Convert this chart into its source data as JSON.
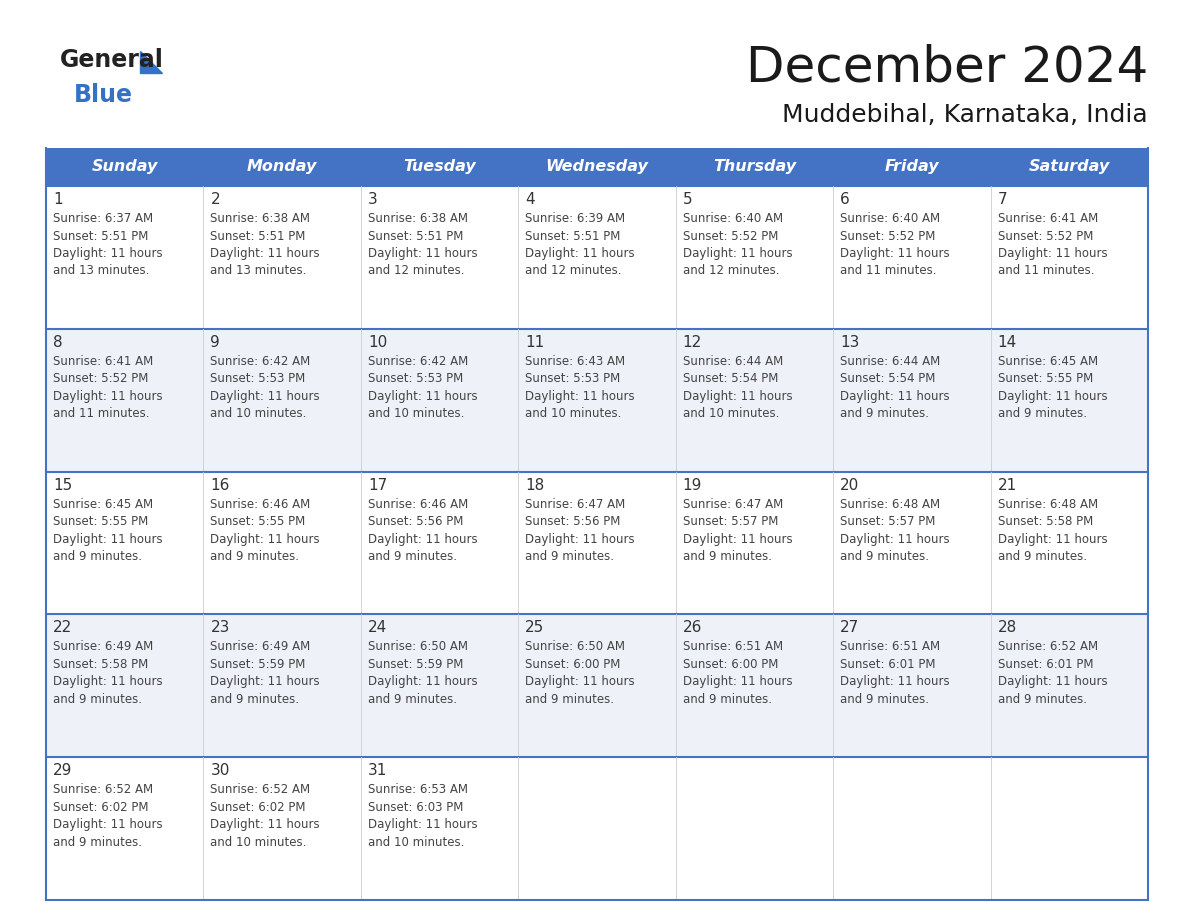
{
  "title": "December 2024",
  "subtitle": "Muddebihal, Karnataka, India",
  "header_bg_color": "#4472C4",
  "header_text_color": "#FFFFFF",
  "cell_border_color": "#4472C4",
  "row_border_color": "#4472C4",
  "day_number_color": "#333333",
  "cell_text_color": "#444444",
  "background_color": "#FFFFFF",
  "cell_bg_even": "#FFFFFF",
  "cell_bg_odd": "#EEF2F8",
  "days_of_week": [
    "Sunday",
    "Monday",
    "Tuesday",
    "Wednesday",
    "Thursday",
    "Friday",
    "Saturday"
  ],
  "weeks": [
    [
      {
        "day": 1,
        "sunrise": "6:37 AM",
        "sunset": "5:51 PM",
        "daylight_line1": "11 hours",
        "daylight_line2": "and 13 minutes."
      },
      {
        "day": 2,
        "sunrise": "6:38 AM",
        "sunset": "5:51 PM",
        "daylight_line1": "11 hours",
        "daylight_line2": "and 13 minutes."
      },
      {
        "day": 3,
        "sunrise": "6:38 AM",
        "sunset": "5:51 PM",
        "daylight_line1": "11 hours",
        "daylight_line2": "and 12 minutes."
      },
      {
        "day": 4,
        "sunrise": "6:39 AM",
        "sunset": "5:51 PM",
        "daylight_line1": "11 hours",
        "daylight_line2": "and 12 minutes."
      },
      {
        "day": 5,
        "sunrise": "6:40 AM",
        "sunset": "5:52 PM",
        "daylight_line1": "11 hours",
        "daylight_line2": "and 12 minutes."
      },
      {
        "day": 6,
        "sunrise": "6:40 AM",
        "sunset": "5:52 PM",
        "daylight_line1": "11 hours",
        "daylight_line2": "and 11 minutes."
      },
      {
        "day": 7,
        "sunrise": "6:41 AM",
        "sunset": "5:52 PM",
        "daylight_line1": "11 hours",
        "daylight_line2": "and 11 minutes."
      }
    ],
    [
      {
        "day": 8,
        "sunrise": "6:41 AM",
        "sunset": "5:52 PM",
        "daylight_line1": "11 hours",
        "daylight_line2": "and 11 minutes."
      },
      {
        "day": 9,
        "sunrise": "6:42 AM",
        "sunset": "5:53 PM",
        "daylight_line1": "11 hours",
        "daylight_line2": "and 10 minutes."
      },
      {
        "day": 10,
        "sunrise": "6:42 AM",
        "sunset": "5:53 PM",
        "daylight_line1": "11 hours",
        "daylight_line2": "and 10 minutes."
      },
      {
        "day": 11,
        "sunrise": "6:43 AM",
        "sunset": "5:53 PM",
        "daylight_line1": "11 hours",
        "daylight_line2": "and 10 minutes."
      },
      {
        "day": 12,
        "sunrise": "6:44 AM",
        "sunset": "5:54 PM",
        "daylight_line1": "11 hours",
        "daylight_line2": "and 10 minutes."
      },
      {
        "day": 13,
        "sunrise": "6:44 AM",
        "sunset": "5:54 PM",
        "daylight_line1": "11 hours",
        "daylight_line2": "and 9 minutes."
      },
      {
        "day": 14,
        "sunrise": "6:45 AM",
        "sunset": "5:55 PM",
        "daylight_line1": "11 hours",
        "daylight_line2": "and 9 minutes."
      }
    ],
    [
      {
        "day": 15,
        "sunrise": "6:45 AM",
        "sunset": "5:55 PM",
        "daylight_line1": "11 hours",
        "daylight_line2": "and 9 minutes."
      },
      {
        "day": 16,
        "sunrise": "6:46 AM",
        "sunset": "5:55 PM",
        "daylight_line1": "11 hours",
        "daylight_line2": "and 9 minutes."
      },
      {
        "day": 17,
        "sunrise": "6:46 AM",
        "sunset": "5:56 PM",
        "daylight_line1": "11 hours",
        "daylight_line2": "and 9 minutes."
      },
      {
        "day": 18,
        "sunrise": "6:47 AM",
        "sunset": "5:56 PM",
        "daylight_line1": "11 hours",
        "daylight_line2": "and 9 minutes."
      },
      {
        "day": 19,
        "sunrise": "6:47 AM",
        "sunset": "5:57 PM",
        "daylight_line1": "11 hours",
        "daylight_line2": "and 9 minutes."
      },
      {
        "day": 20,
        "sunrise": "6:48 AM",
        "sunset": "5:57 PM",
        "daylight_line1": "11 hours",
        "daylight_line2": "and 9 minutes."
      },
      {
        "day": 21,
        "sunrise": "6:48 AM",
        "sunset": "5:58 PM",
        "daylight_line1": "11 hours",
        "daylight_line2": "and 9 minutes."
      }
    ],
    [
      {
        "day": 22,
        "sunrise": "6:49 AM",
        "sunset": "5:58 PM",
        "daylight_line1": "11 hours",
        "daylight_line2": "and 9 minutes."
      },
      {
        "day": 23,
        "sunrise": "6:49 AM",
        "sunset": "5:59 PM",
        "daylight_line1": "11 hours",
        "daylight_line2": "and 9 minutes."
      },
      {
        "day": 24,
        "sunrise": "6:50 AM",
        "sunset": "5:59 PM",
        "daylight_line1": "11 hours",
        "daylight_line2": "and 9 minutes."
      },
      {
        "day": 25,
        "sunrise": "6:50 AM",
        "sunset": "6:00 PM",
        "daylight_line1": "11 hours",
        "daylight_line2": "and 9 minutes."
      },
      {
        "day": 26,
        "sunrise": "6:51 AM",
        "sunset": "6:00 PM",
        "daylight_line1": "11 hours",
        "daylight_line2": "and 9 minutes."
      },
      {
        "day": 27,
        "sunrise": "6:51 AM",
        "sunset": "6:01 PM",
        "daylight_line1": "11 hours",
        "daylight_line2": "and 9 minutes."
      },
      {
        "day": 28,
        "sunrise": "6:52 AM",
        "sunset": "6:01 PM",
        "daylight_line1": "11 hours",
        "daylight_line2": "and 9 minutes."
      }
    ],
    [
      {
        "day": 29,
        "sunrise": "6:52 AM",
        "sunset": "6:02 PM",
        "daylight_line1": "11 hours",
        "daylight_line2": "and 9 minutes."
      },
      {
        "day": 30,
        "sunrise": "6:52 AM",
        "sunset": "6:02 PM",
        "daylight_line1": "11 hours",
        "daylight_line2": "and 10 minutes."
      },
      {
        "day": 31,
        "sunrise": "6:53 AM",
        "sunset": "6:03 PM",
        "daylight_line1": "11 hours",
        "daylight_line2": "and 10 minutes."
      },
      null,
      null,
      null,
      null
    ]
  ]
}
